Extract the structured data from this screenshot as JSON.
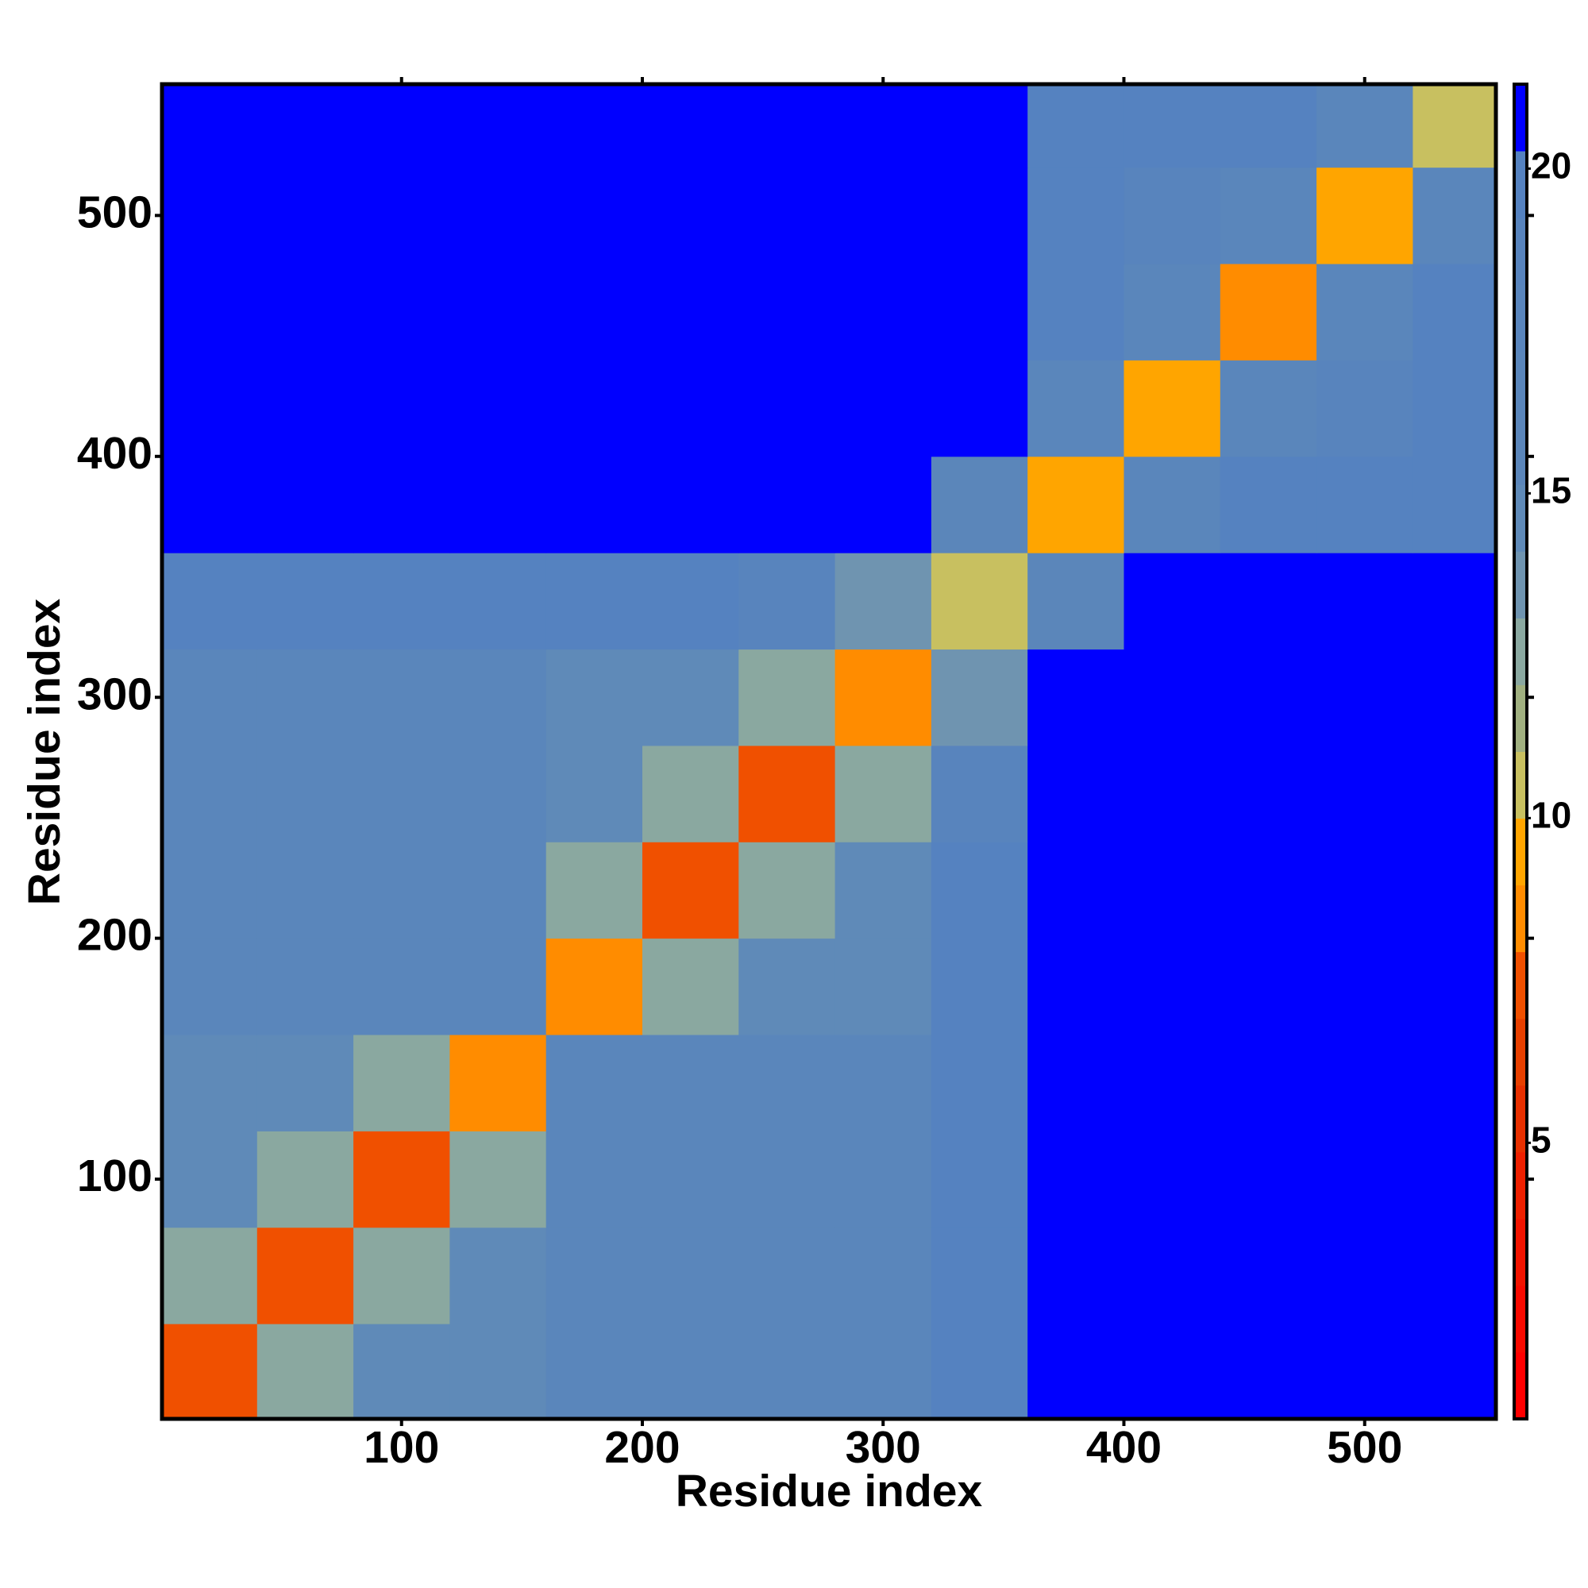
{
  "chart_data": {
    "type": "heatmap",
    "xlabel": "Residue index",
    "ylabel": "Residue index",
    "bins": [
      0,
      40,
      80,
      120,
      160,
      200,
      240,
      280,
      320,
      360,
      400,
      440,
      480,
      520,
      560
    ],
    "z": [
      [
        7,
        13,
        15,
        15,
        17,
        17,
        17,
        17,
        20,
        21,
        21,
        21,
        21,
        21
      ],
      [
        13,
        7,
        13,
        15,
        17,
        17,
        17,
        17,
        20,
        21,
        21,
        21,
        21,
        21
      ],
      [
        15,
        13,
        7,
        13,
        17,
        17,
        17,
        17,
        20,
        21,
        21,
        21,
        21,
        21
      ],
      [
        15,
        15,
        13,
        8,
        17,
        17,
        17,
        17,
        20,
        21,
        21,
        21,
        21,
        21
      ],
      [
        17,
        17,
        17,
        17,
        8,
        13,
        15,
        15,
        20,
        21,
        21,
        21,
        21,
        21
      ],
      [
        17,
        17,
        17,
        17,
        13,
        7,
        13,
        15,
        20,
        21,
        21,
        21,
        21,
        21
      ],
      [
        17,
        17,
        17,
        17,
        15,
        13,
        7,
        13,
        19,
        21,
        21,
        21,
        21,
        21
      ],
      [
        17,
        17,
        17,
        17,
        15,
        15,
        13,
        8,
        14,
        21,
        21,
        21,
        21,
        21
      ],
      [
        20,
        20,
        20,
        20,
        20,
        20,
        19,
        14,
        10,
        16,
        21,
        21,
        21,
        21
      ],
      [
        21,
        21,
        21,
        21,
        21,
        21,
        21,
        21,
        16,
        9,
        17,
        20,
        20,
        20
      ],
      [
        21,
        21,
        21,
        21,
        21,
        21,
        21,
        21,
        21,
        17,
        9,
        17,
        19,
        20
      ],
      [
        21,
        21,
        21,
        21,
        21,
        21,
        21,
        21,
        21,
        20,
        17,
        8,
        17,
        20
      ],
      [
        21,
        21,
        21,
        21,
        21,
        21,
        21,
        21,
        21,
        20,
        19,
        17,
        9,
        17
      ],
      [
        21,
        21,
        21,
        21,
        21,
        21,
        21,
        21,
        21,
        20,
        20,
        20,
        17,
        10
      ]
    ],
    "xlim": [
      0.5,
      554.5
    ],
    "ylim": [
      0.5,
      554.5
    ],
    "xticks": [
      100,
      200,
      300,
      400,
      500
    ],
    "yticks": [
      100,
      200,
      300,
      400,
      500
    ],
    "clim": [
      0.75,
      21.3
    ],
    "cticks": [
      5,
      10,
      15,
      20
    ],
    "colorscale": [
      "#ff0000",
      "#f80a00",
      "#f21400",
      "#ee2000",
      "#e83000",
      "#e84000",
      "#f05000",
      "#ff8c00",
      "#ffa500",
      "#c8c060",
      "#a0b080",
      "#8aa8a0",
      "#6f94b0",
      "#5f8ab8",
      "#5b86ba",
      "#5a86bb",
      "#5985bc",
      "#5884bd",
      "#5582c0",
      "#0000ff"
    ]
  }
}
